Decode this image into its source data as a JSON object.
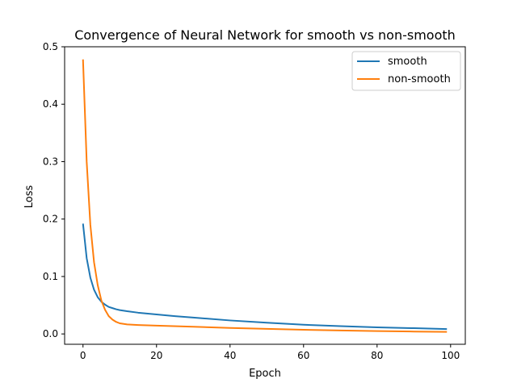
{
  "chart_data": {
    "type": "line",
    "title": "Convergence of Neural Network for smooth vs non-smooth",
    "xlabel": "Epoch",
    "ylabel": "Loss",
    "xlim": [
      -5,
      104
    ],
    "ylim": [
      -0.018,
      0.5
    ],
    "xticks": [
      0,
      20,
      40,
      60,
      80,
      100
    ],
    "yticks": [
      0.0,
      0.1,
      0.2,
      0.3,
      0.4,
      0.5
    ],
    "ytick_labels": [
      "0.0",
      "0.1",
      "0.2",
      "0.3",
      "0.4",
      "0.5"
    ],
    "xtick_labels": [
      "0",
      "20",
      "40",
      "60",
      "80",
      "100"
    ],
    "legend_position": "top-right",
    "grid": false,
    "series": [
      {
        "name": "smooth",
        "color": "#1f77b4",
        "x": [
          0,
          1,
          2,
          3,
          4,
          5,
          6,
          7,
          8,
          9,
          10,
          12,
          15,
          20,
          25,
          30,
          40,
          50,
          60,
          70,
          80,
          90,
          99
        ],
        "values": [
          0.192,
          0.132,
          0.098,
          0.077,
          0.064,
          0.056,
          0.051,
          0.047,
          0.045,
          0.043,
          0.0415,
          0.0395,
          0.037,
          0.034,
          0.031,
          0.0285,
          0.0235,
          0.0195,
          0.016,
          0.0135,
          0.0115,
          0.01,
          0.0085
        ]
      },
      {
        "name": "non-smooth",
        "color": "#ff7f0e",
        "x": [
          0,
          1,
          2,
          3,
          4,
          5,
          6,
          7,
          8,
          9,
          10,
          12,
          15,
          20,
          30,
          40,
          50,
          60,
          70,
          80,
          90,
          99
        ],
        "values": [
          0.478,
          0.3,
          0.19,
          0.125,
          0.085,
          0.058,
          0.042,
          0.031,
          0.025,
          0.021,
          0.0185,
          0.0165,
          0.0155,
          0.0145,
          0.0125,
          0.0105,
          0.0088,
          0.0072,
          0.006,
          0.005,
          0.0042,
          0.0035
        ]
      }
    ]
  }
}
